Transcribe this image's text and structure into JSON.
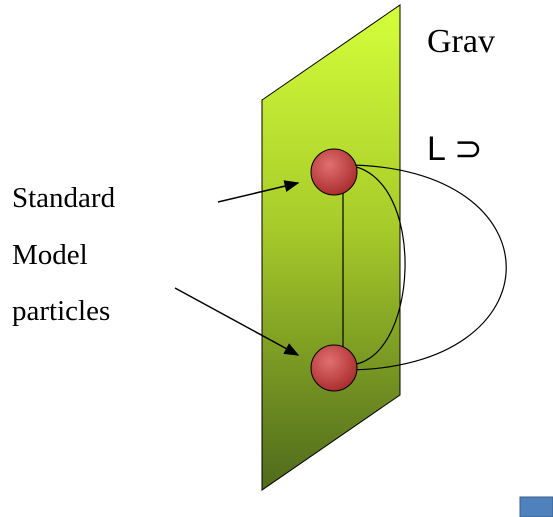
{
  "heading": "Grav",
  "formula": "L ⊃",
  "label": {
    "lines": [
      "Standard",
      "Model",
      "particles"
    ]
  }
}
